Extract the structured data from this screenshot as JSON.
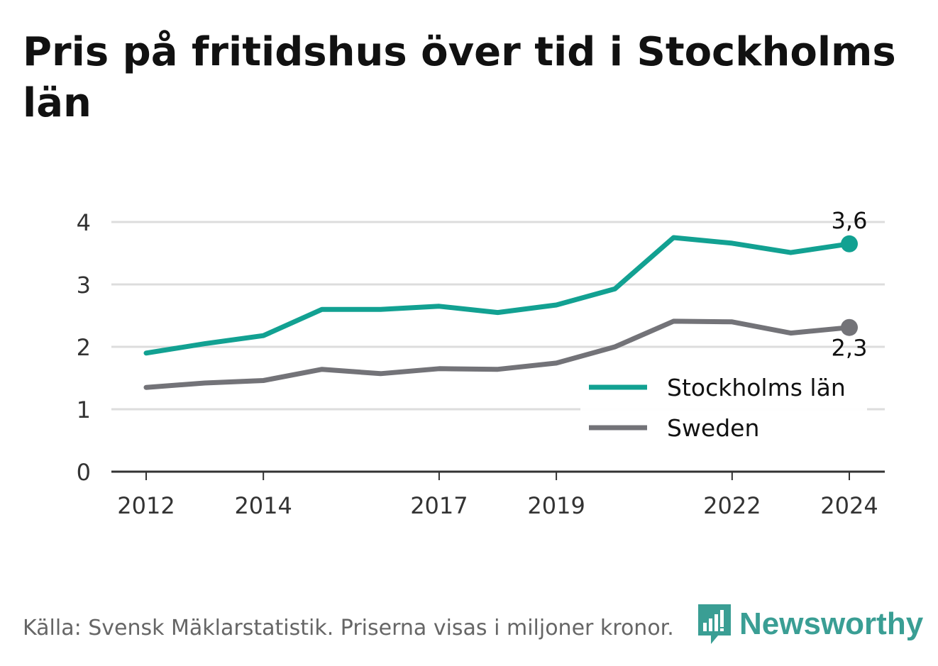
{
  "title": "Pris på fritidshus över tid i Stockholms län",
  "footer": "Källa: Svensk Mäklarstatistik. Priserna visas i miljoner kronor.",
  "brand": "Newsworthy",
  "colors": {
    "stockholm": "#12a192",
    "sweden": "#737378",
    "grid": "#dddddd",
    "axis": "#333333",
    "brand": "#3a9e94"
  },
  "chart_data": {
    "type": "line",
    "title": "Pris på fritidshus över tid i Stockholms län",
    "xlabel": "",
    "ylabel": "",
    "x": [
      2012,
      2013,
      2014,
      2015,
      2016,
      2017,
      2018,
      2019,
      2020,
      2021,
      2022,
      2023,
      2024
    ],
    "xticks": [
      "2012",
      "2014",
      "2017",
      "2019",
      "2022",
      "2024"
    ],
    "yticks": [
      "0",
      "1",
      "2",
      "3",
      "4"
    ],
    "ylim": [
      0,
      4
    ],
    "grid": true,
    "legend_position": "bottom-right",
    "series": [
      {
        "name": "Stockholms län",
        "color": "#12a192",
        "values": [
          1.9,
          2.05,
          2.18,
          2.6,
          2.6,
          2.65,
          2.55,
          2.67,
          2.93,
          3.75,
          3.66,
          3.51,
          3.65
        ],
        "end_label": "3,6"
      },
      {
        "name": "Sweden",
        "color": "#737378",
        "values": [
          1.35,
          1.42,
          1.46,
          1.64,
          1.57,
          1.65,
          1.64,
          1.74,
          2.0,
          2.41,
          2.4,
          2.22,
          2.31
        ],
        "end_label": "2,3"
      }
    ]
  }
}
